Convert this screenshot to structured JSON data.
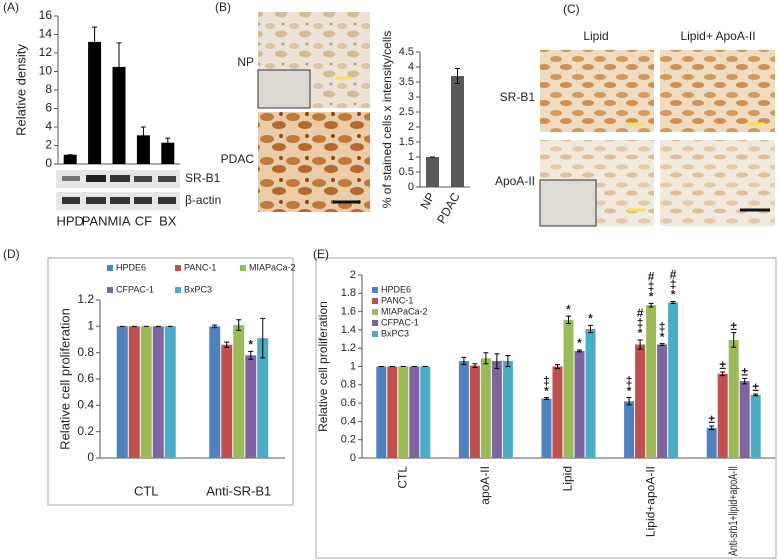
{
  "chart_data": [
    {
      "type": "bar",
      "label": "(A)",
      "y_label": "Relative density",
      "color": "#000000",
      "categories": [
        "HPD",
        "PAN",
        "MIA",
        "CF",
        "BX"
      ],
      "values": [
        1,
        13.2,
        10.5,
        3.1,
        2.3
      ],
      "errors": [
        0,
        1.6,
        2.6,
        0.9,
        0.5
      ],
      "ylim": [
        0,
        16
      ],
      "yticks": [
        0,
        2,
        4,
        6,
        8,
        10,
        12,
        14,
        16
      ]
    },
    {
      "type": "bar",
      "label": "(B)",
      "y_label": "% of stained cells x intensity/cells",
      "color": "#595959",
      "categories": [
        "NP",
        "PDAC"
      ],
      "values": [
        1,
        3.7
      ],
      "errors": [
        0,
        0.25
      ],
      "ylim": [
        0,
        4.5
      ],
      "yticks": [
        0,
        0.5,
        1,
        1.5,
        2,
        2.5,
        3,
        3.5,
        4,
        4.5
      ]
    },
    {
      "type": "bar",
      "label": "(D)",
      "y_label": "Relative cell proliferation",
      "categories": [
        "CTL",
        "Anti-SR-B1"
      ],
      "series": [
        {
          "name": "HPDE6",
          "color": "#4f81bd",
          "values": [
            1,
            1.0
          ],
          "errors": [
            0,
            0.01
          ],
          "annotations": [
            null,
            null
          ]
        },
        {
          "name": "PANC-1",
          "color": "#c0504d",
          "values": [
            1,
            0.86
          ],
          "errors": [
            0,
            0.02
          ],
          "annotations": [
            null,
            null
          ]
        },
        {
          "name": "MIAPaCa-2",
          "color": "#9bbb59",
          "values": [
            1,
            1.01
          ],
          "errors": [
            0,
            0.04
          ],
          "annotations": [
            null,
            null
          ]
        },
        {
          "name": "CFPAC-1",
          "color": "#8064a2",
          "values": [
            1,
            0.78
          ],
          "errors": [
            0,
            0.03
          ],
          "annotations": [
            null,
            [
              "*"
            ]
          ]
        },
        {
          "name": "BxPC3",
          "color": "#4bacc6",
          "values": [
            1,
            0.91
          ],
          "errors": [
            0,
            0.15
          ],
          "annotations": [
            null,
            null
          ]
        }
      ],
      "ylim": [
        0,
        1.2
      ],
      "yticks": [
        0,
        0.2,
        0.4,
        0.6,
        0.8,
        1,
        1.2
      ]
    },
    {
      "type": "bar",
      "label": "(E)",
      "y_label": "Relative cell proliferation",
      "categories": [
        "CTL",
        "apoA-II",
        "Lipid",
        "Lipid+apoA-II",
        "Anti-srb1+lipid+apoA-II"
      ],
      "series": [
        {
          "name": "HPDE6",
          "color": "#4f81bd",
          "values": [
            1,
            1.06,
            0.65,
            0.62,
            0.33
          ],
          "errors": [
            0,
            0.04,
            0.01,
            0.04,
            0.02
          ],
          "annotations": [
            null,
            null,
            [
              "‡",
              "*"
            ],
            [
              "‡",
              "*"
            ],
            [
              "±"
            ]
          ]
        },
        {
          "name": "PANC-1",
          "color": "#c0504d",
          "values": [
            1,
            1.01,
            1.0,
            1.24,
            0.92
          ],
          "errors": [
            0,
            0.02,
            0.02,
            0.05,
            0.02
          ],
          "annotations": [
            null,
            null,
            null,
            [
              "#",
              "‡",
              "*"
            ],
            [
              "±"
            ]
          ]
        },
        {
          "name": "MIAPaCa-2",
          "color": "#9bbb59",
          "values": [
            1,
            1.09,
            1.51,
            1.67,
            1.29
          ],
          "errors": [
            0,
            0.06,
            0.04,
            0.02,
            0.08
          ],
          "annotations": [
            null,
            null,
            [
              "*"
            ],
            [
              "#",
              "‡",
              "*"
            ],
            [
              "±"
            ]
          ]
        },
        {
          "name": "CFPAC-1",
          "color": "#8064a2",
          "values": [
            1,
            1.06,
            1.17,
            1.24,
            0.84
          ],
          "errors": [
            0,
            0.08,
            0.01,
            0.01,
            0.03
          ],
          "annotations": [
            null,
            null,
            [
              "*"
            ],
            [
              "‡",
              "*"
            ],
            [
              "±"
            ]
          ]
        },
        {
          "name": "BxPC3",
          "color": "#4bacc6",
          "values": [
            1,
            1.06,
            1.41,
            1.7,
            0.69
          ],
          "errors": [
            0,
            0.06,
            0.04,
            0.01,
            0.01
          ],
          "annotations": [
            null,
            null,
            [
              "*"
            ],
            [
              "#",
              "‡",
              "*"
            ],
            [
              "±"
            ]
          ]
        }
      ],
      "ylim": [
        0,
        2
      ],
      "yticks": [
        0,
        0.2,
        0.4,
        0.6,
        0.8,
        1,
        1.2,
        1.4,
        1.6,
        1.8,
        2
      ]
    }
  ],
  "figure": {
    "a_blot": [
      "SR-B1",
      "β-actin"
    ],
    "b_images": [
      "NP",
      "PDAC"
    ],
    "c_label": "(C)",
    "c_columns": [
      "Lipid",
      "Lipid+ ApoA-II"
    ],
    "c_rows": [
      "SR-B1",
      "ApoA-II"
    ]
  }
}
